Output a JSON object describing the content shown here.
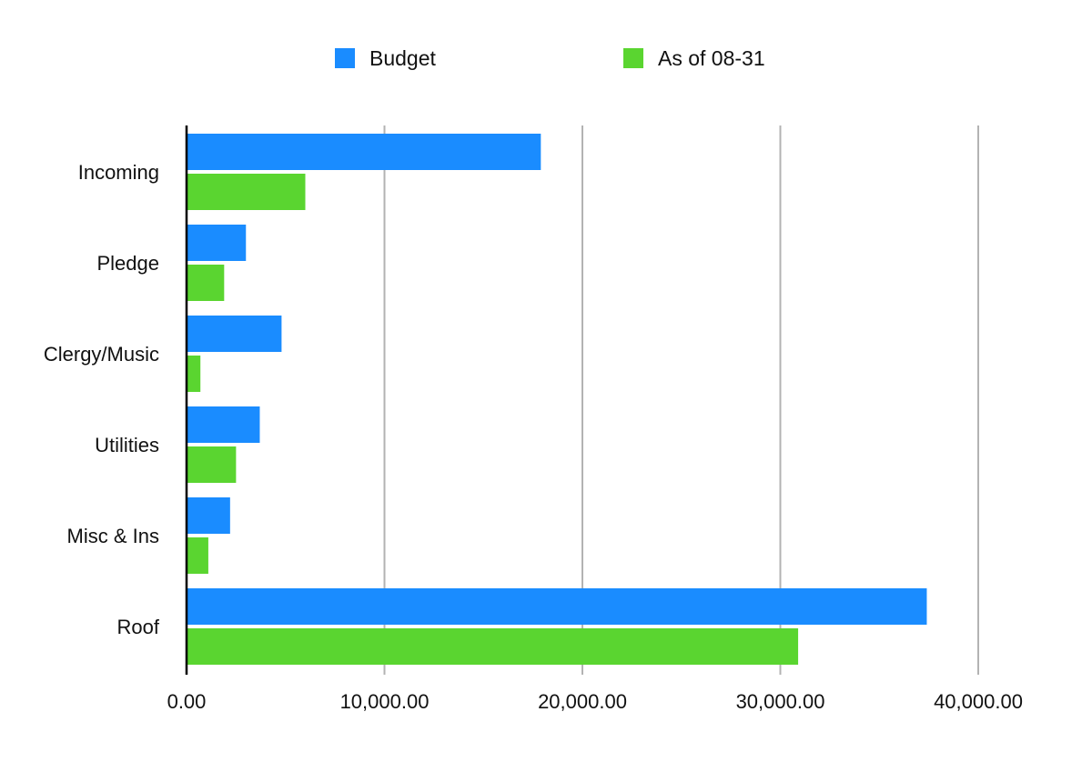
{
  "colors": {
    "budget": "#1a8cff",
    "actual": "#5ad530",
    "grid": "#b3b3b3",
    "axis": "#000000",
    "text": "#111111"
  },
  "chart_data": {
    "type": "bar",
    "orientation": "horizontal",
    "title": "",
    "xlabel": "",
    "ylabel": "",
    "categories": [
      "Incoming",
      "Pledge",
      "Clergy/Music",
      "Utilities",
      "Misc & Ins",
      "Roof"
    ],
    "series": [
      {
        "name": "Budget",
        "color": "#1a8cff",
        "values": [
          17900,
          3000,
          4800,
          3700,
          2200,
          37400
        ]
      },
      {
        "name": "As of 08-31",
        "color": "#5ad530",
        "values": [
          6000,
          1900,
          700,
          2500,
          1100,
          30900
        ]
      }
    ],
    "xlim": [
      0,
      40000
    ],
    "xticks": [
      0,
      10000,
      20000,
      30000,
      40000
    ],
    "xtick_labels": [
      "0.00",
      "10,000.00",
      "20,000.00",
      "30,000.00",
      "40,000.00"
    ],
    "grid": "vertical",
    "legend_position": "top-center"
  }
}
